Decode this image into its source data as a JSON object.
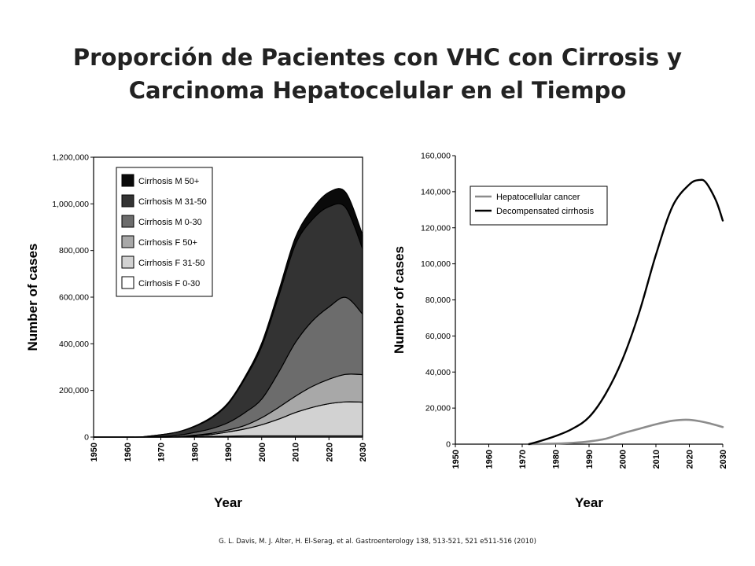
{
  "slide": {
    "title_line1": "Proporción de Pacientes con VHC con Cirrosis y",
    "title_line2": "Carcinoma Hepatocelular en el Tiempo",
    "citation": "G. L. Davis, M. J. Alter, H. El-Serag, et al. Gastroenterology 138, 513-521, 521 e511-516 (2010)"
  },
  "chart_data": [
    {
      "type": "area",
      "stacked": true,
      "xlabel": "Year",
      "ylabel": "Number of cases",
      "xlim": [
        1950,
        2030
      ],
      "ylim": [
        0,
        1200000
      ],
      "x_ticks": [
        "1950",
        "1960",
        "1970",
        "1980",
        "1990",
        "2000",
        "2010",
        "2020",
        "2030"
      ],
      "y_ticks": [
        "0",
        "200,000",
        "400,000",
        "600,000",
        "800,000",
        "1,000,000",
        "1,200,000"
      ],
      "legend_position": "top-left",
      "grid": false,
      "x": [
        1950,
        1960,
        1963,
        1965,
        1970,
        1975,
        1980,
        1985,
        1990,
        1995,
        2000,
        2005,
        2010,
        2015,
        2020,
        2025,
        2030
      ],
      "series": [
        {
          "name": "Cirrhosis F 0-30",
          "color": "#ffffff",
          "values": [
            0,
            0,
            0,
            0,
            0,
            0,
            2000,
            3000,
            4000,
            5000,
            5000,
            5000,
            5000,
            5000,
            5000,
            5000,
            5000
          ]
        },
        {
          "name": "Cirrhosis F 31-50",
          "color": "#d2d2d2",
          "values": [
            0,
            0,
            0,
            0,
            0,
            1000,
            4000,
            8000,
            18000,
            30000,
            48000,
            72000,
            100000,
            122000,
            138000,
            146000,
            145000
          ]
        },
        {
          "name": "Cirrhosis F 50+",
          "color": "#a8a8a8",
          "values": [
            0,
            0,
            0,
            0,
            0,
            0,
            2000,
            5000,
            8000,
            15000,
            30000,
            50000,
            70000,
            90000,
            105000,
            118000,
            118000
          ]
        },
        {
          "name": "Cirrhosis M 0-30",
          "color": "#6c6c6c",
          "values": [
            0,
            0,
            0,
            0,
            2000,
            6000,
            12000,
            20000,
            32000,
            55000,
            80000,
            150000,
            230000,
            280000,
            310000,
            330000,
            260000
          ]
        },
        {
          "name": "Cirrhosis M 31-50",
          "color": "#333333",
          "values": [
            0,
            0,
            0,
            2000,
            8000,
            15000,
            25000,
            45000,
            80000,
            145000,
            225000,
            325000,
            420000,
            435000,
            430000,
            385000,
            280000
          ]
        },
        {
          "name": "Cirrhosis M 50+",
          "color": "#0a0a0a",
          "values": [
            0,
            0,
            0,
            0,
            0,
            0,
            2000,
            4000,
            5000,
            8000,
            15000,
            22000,
            30000,
            45000,
            62000,
            65000,
            60000
          ]
        }
      ]
    },
    {
      "type": "line",
      "xlabel": "Year",
      "ylabel": "Number of cases",
      "xlim": [
        1950,
        2030
      ],
      "ylim": [
        0,
        160000
      ],
      "x_ticks": [
        "1950",
        "1960",
        "1970",
        "1980",
        "1990",
        "2000",
        "2010",
        "2020",
        "2030"
      ],
      "y_ticks": [
        "0",
        "20,000",
        "40,000",
        "60,000",
        "80,000",
        "100,000",
        "120,000",
        "140,000",
        "160,000"
      ],
      "legend_position": "top-left",
      "grid": false,
      "series": [
        {
          "name": "Hepatocellular cancer",
          "color": "#8c8c8c",
          "x": [
            1972,
            1980,
            1985,
            1990,
            1995,
            2000,
            2005,
            2010,
            2015,
            2020,
            2025,
            2030
          ],
          "values": [
            0,
            300,
            700,
            1500,
            3000,
            6000,
            8500,
            11000,
            13000,
            13500,
            12000,
            9500
          ]
        },
        {
          "name": "Decompensated cirrhosis",
          "color": "#000000",
          "x": [
            1972,
            1975,
            1980,
            1985,
            1990,
            1995,
            2000,
            2005,
            2010,
            2015,
            2020,
            2023,
            2025,
            2028,
            2030
          ],
          "values": [
            0,
            1500,
            4500,
            8500,
            15000,
            28000,
            47000,
            73000,
            105000,
            132000,
            144000,
            146500,
            145000,
            135000,
            124000
          ]
        }
      ]
    }
  ]
}
